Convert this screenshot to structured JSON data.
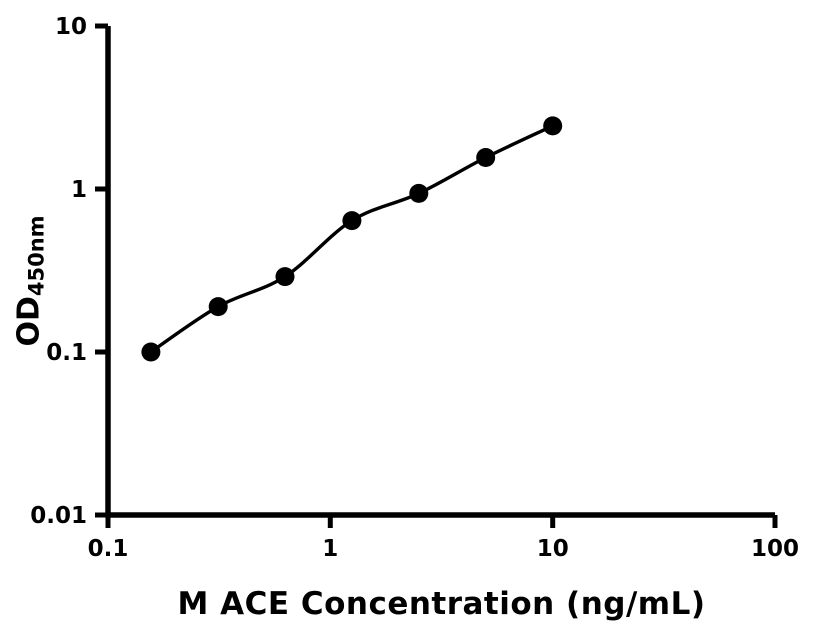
{
  "figure": {
    "background_color": "#ffffff",
    "foreground_color": "#000000"
  },
  "chart_data": {
    "type": "scatter",
    "subtype": "elisa-standard-curve",
    "x_scale": "log10",
    "y_scale": "log10",
    "points": [
      {
        "x": 0.156,
        "y": 0.1
      },
      {
        "x": 0.313,
        "y": 0.19
      },
      {
        "x": 0.625,
        "y": 0.29
      },
      {
        "x": 1.25,
        "y": 0.64
      },
      {
        "x": 2.5,
        "y": 0.94
      },
      {
        "x": 5,
        "y": 1.56
      },
      {
        "x": 10,
        "y": 2.44
      }
    ],
    "fit_line": true,
    "marker": {
      "shape": "circle",
      "color": "#000000",
      "radius_px": 9.5
    },
    "line": {
      "color": "#000000"
    },
    "title": "",
    "xlabel": "M ACE Concentration (ng/mL)",
    "ylabel": {
      "main": "OD",
      "subscript": "450nm"
    },
    "xlim": [
      0.1,
      100
    ],
    "ylim": [
      0.01,
      10
    ],
    "x_ticks": [
      {
        "value": 0.1,
        "label": "0.1"
      },
      {
        "value": 1,
        "label": "1"
      },
      {
        "value": 10,
        "label": "10"
      },
      {
        "value": 100,
        "label": "100"
      }
    ],
    "y_ticks": [
      {
        "value": 0.01,
        "label": "0.01"
      },
      {
        "value": 0.1,
        "label": "0.1"
      },
      {
        "value": 1,
        "label": "1"
      },
      {
        "value": 10,
        "label": "10"
      }
    ],
    "grid": false,
    "legend": null
  }
}
